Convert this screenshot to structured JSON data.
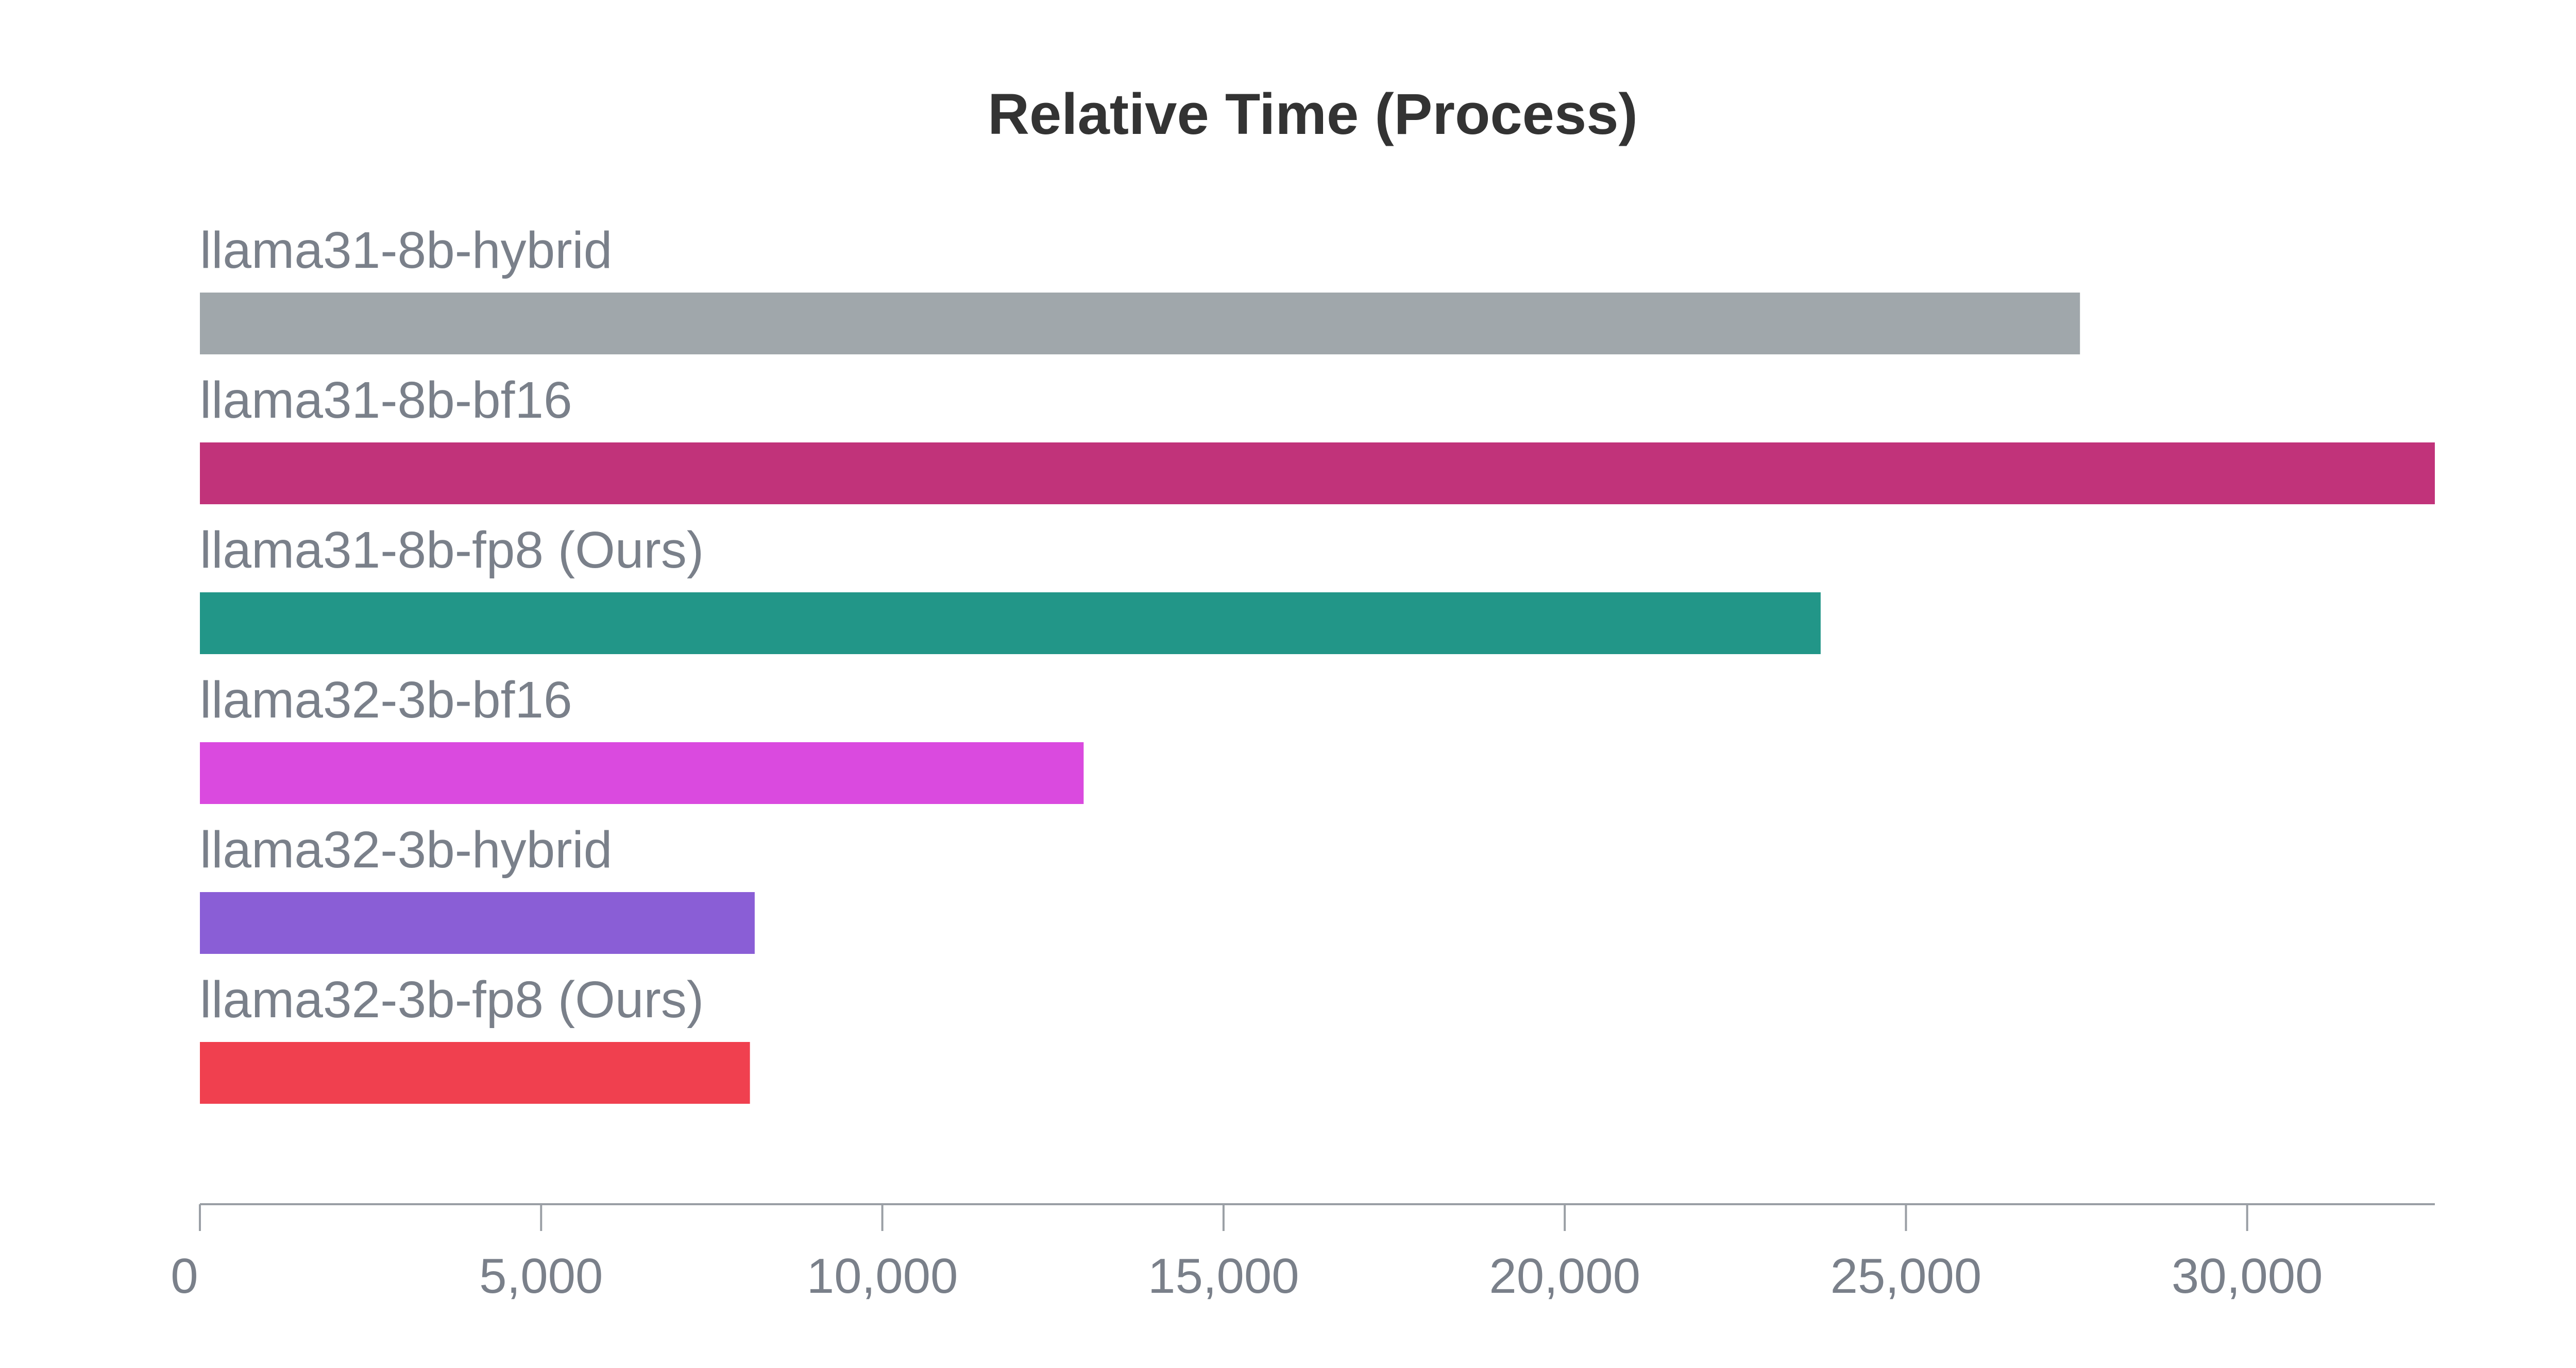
{
  "chart_data": {
    "type": "bar",
    "orientation": "horizontal",
    "title": "Relative Time (Process)",
    "xlabel": "",
    "ylabel": "",
    "xlim": [
      0,
      32750
    ],
    "x_ticks": [
      0,
      5000,
      10000,
      15000,
      20000,
      25000,
      30000
    ],
    "x_tick_labels": [
      "0",
      "5,000",
      "10,000",
      "15,000",
      "20,000",
      "25,000",
      "30,000"
    ],
    "grid": false,
    "legend": "none",
    "categories": [
      "llama31-8b-hybrid",
      "llama31-8b-bf16",
      "llama31-8b-fp8 (Ours)",
      "llama32-3b-bf16",
      "llama32-3b-hybrid",
      "llama32-3b-fp8 (Ours)"
    ],
    "values": [
      27550,
      32750,
      23750,
      12950,
      8130,
      8060
    ],
    "colors": [
      "#a0a7ab",
      "#c1337a",
      "#229688",
      "#da4adf",
      "#8a5ed6",
      "#f0404f"
    ]
  }
}
